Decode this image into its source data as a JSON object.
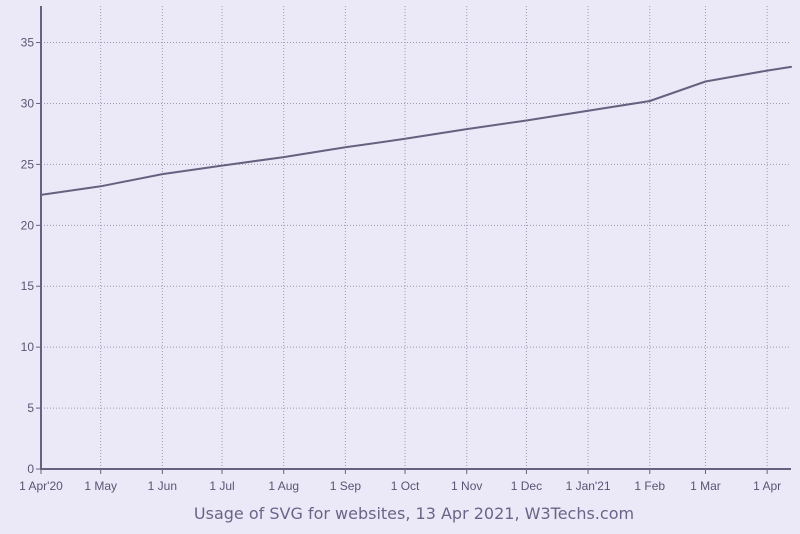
{
  "chart_data": {
    "type": "line",
    "title": "Usage of SVG for websites, 13 Apr 2021, W3Techs.com",
    "xlabel": "",
    "ylabel": "",
    "ylim": [
      0,
      38
    ],
    "y_ticks": [
      0,
      5,
      10,
      15,
      20,
      25,
      30,
      35
    ],
    "x_range": [
      "2020-04-01",
      "2021-04-13"
    ],
    "x_ticks": [
      {
        "date": "2020-04-01",
        "label": "1 Apr'20"
      },
      {
        "date": "2020-05-01",
        "label": "1 May"
      },
      {
        "date": "2020-06-01",
        "label": "1 Jun"
      },
      {
        "date": "2020-07-01",
        "label": "1 Jul"
      },
      {
        "date": "2020-08-01",
        "label": "1 Aug"
      },
      {
        "date": "2020-09-01",
        "label": "1 Sep"
      },
      {
        "date": "2020-10-01",
        "label": "1 Oct"
      },
      {
        "date": "2020-11-01",
        "label": "1 Nov"
      },
      {
        "date": "2020-12-01",
        "label": "1 Dec"
      },
      {
        "date": "2021-01-01",
        "label": "1 Jan'21"
      },
      {
        "date": "2021-02-01",
        "label": "1 Feb"
      },
      {
        "date": "2021-03-01",
        "label": "1 Mar"
      },
      {
        "date": "2021-04-01",
        "label": "1 Apr"
      }
    ],
    "grid": true,
    "series": [
      {
        "name": "",
        "color": "#67617f",
        "points": [
          {
            "x": "2020-04-01",
            "y": 22.5
          },
          {
            "x": "2020-05-01",
            "y": 23.2
          },
          {
            "x": "2020-06-01",
            "y": 24.2
          },
          {
            "x": "2020-07-01",
            "y": 24.9
          },
          {
            "x": "2020-08-01",
            "y": 25.6
          },
          {
            "x": "2020-09-01",
            "y": 26.4
          },
          {
            "x": "2020-10-01",
            "y": 27.1
          },
          {
            "x": "2020-11-01",
            "y": 27.9
          },
          {
            "x": "2020-12-01",
            "y": 28.6
          },
          {
            "x": "2021-01-01",
            "y": 29.4
          },
          {
            "x": "2021-02-01",
            "y": 30.2
          },
          {
            "x": "2021-03-01",
            "y": 31.8
          },
          {
            "x": "2021-04-01",
            "y": 32.7
          },
          {
            "x": "2021-04-13",
            "y": 33.0
          }
        ]
      }
    ]
  },
  "colors": {
    "background": "#ebe9f7",
    "axis": "#67617f",
    "grid": "#9c98b4",
    "line": "#67617f",
    "text": "#5a5474",
    "caption": "#6a6588"
  }
}
